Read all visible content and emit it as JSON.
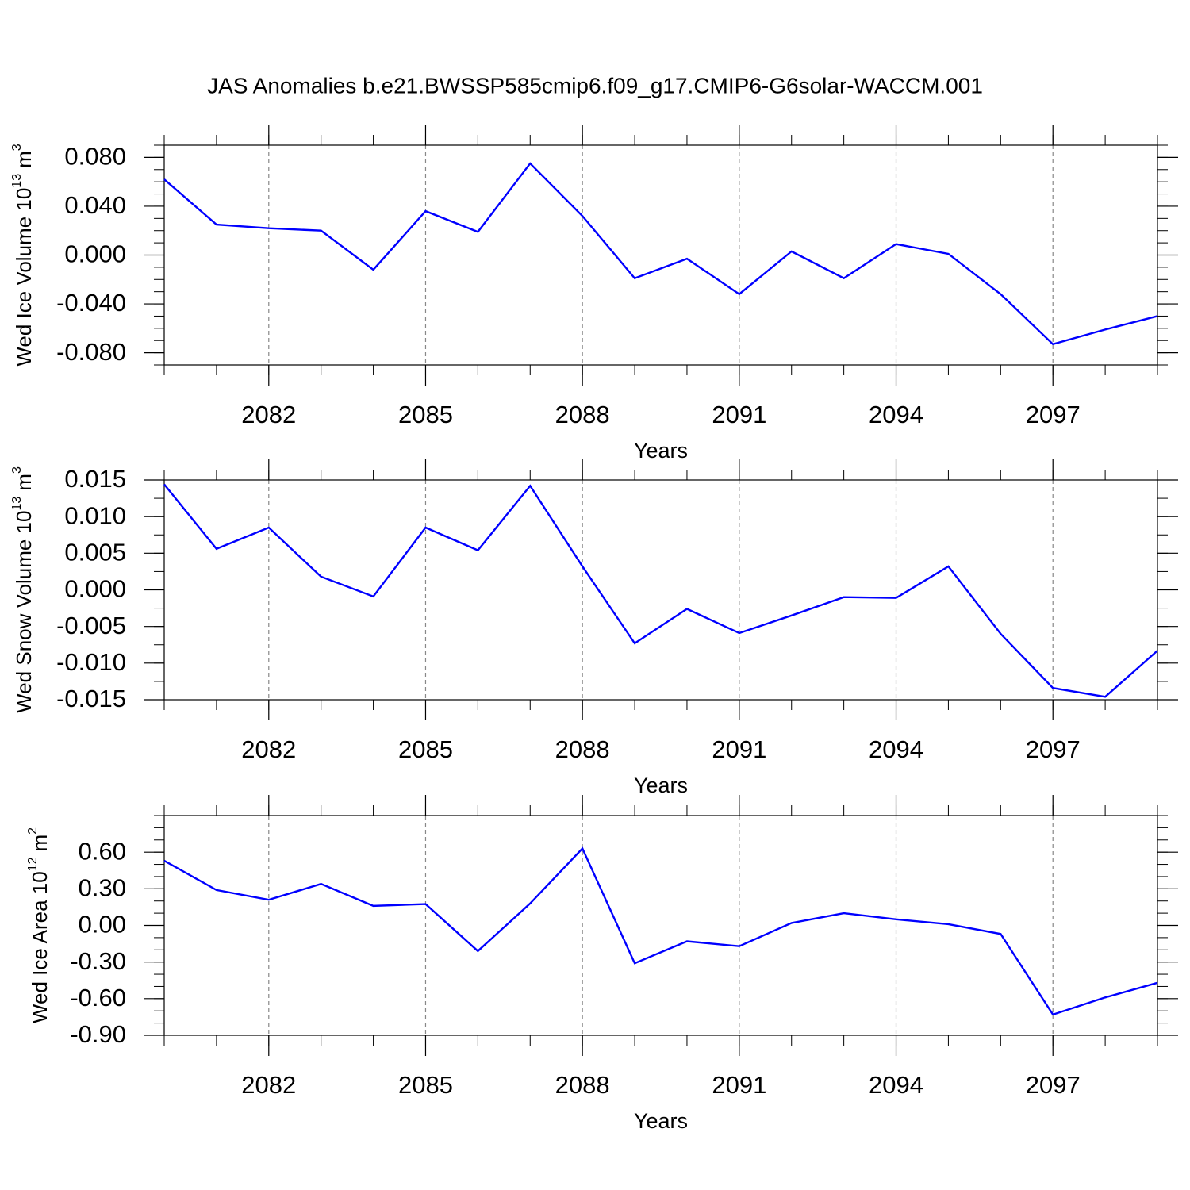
{
  "chart_data": [
    {
      "type": "line",
      "title": "JAS Anomalies b.e21.BWSSP585cmip6.f09_g17.CMIP6-G6solar-WACCM.001",
      "xlabel": "Years",
      "ylabel": {
        "text": "Wed Ice Volume 10",
        "exponent": "13",
        "unit": "m",
        "unit_exponent": "3"
      },
      "x": [
        2080,
        2081,
        2082,
        2083,
        2084,
        2085,
        2086,
        2087,
        2088,
        2089,
        2090,
        2091,
        2092,
        2093,
        2094,
        2095,
        2096,
        2097,
        2098,
        2099
      ],
      "series": [
        {
          "color": "#0000ff",
          "values": [
            0.062,
            0.025,
            0.022,
            0.02,
            -0.012,
            0.036,
            0.019,
            0.075,
            0.032,
            -0.019,
            -0.003,
            -0.032,
            0.003,
            -0.019,
            0.009,
            0.001,
            -0.032,
            -0.073,
            -0.061,
            -0.05
          ]
        }
      ],
      "xlim": [
        2080,
        2099
      ],
      "xticks": [
        2082,
        2085,
        2088,
        2091,
        2094,
        2097
      ],
      "xminorticks": [
        2080,
        2081,
        2082,
        2083,
        2084,
        2085,
        2086,
        2087,
        2088,
        2089,
        2090,
        2091,
        2092,
        2093,
        2094,
        2095,
        2096,
        2097,
        2098,
        2099
      ],
      "ylim": [
        -0.09,
        0.09
      ],
      "yticks": [
        {
          "value": 0.08,
          "label": "0.080"
        },
        {
          "value": 0.04,
          "label": "0.040"
        },
        {
          "value": 0,
          "label": "0.000"
        },
        {
          "value": -0.04,
          "label": "-0.040"
        },
        {
          "value": -0.08,
          "label": "-0.080"
        }
      ],
      "yminorticks": [
        -0.09,
        -0.08,
        -0.07,
        -0.06,
        -0.05,
        -0.04,
        -0.03,
        -0.02,
        -0.01,
        0,
        0.01,
        0.02,
        0.03,
        0.04,
        0.05,
        0.06,
        0.07,
        0.08,
        0.09
      ],
      "grid": "x"
    },
    {
      "type": "line",
      "xlabel": "Years",
      "ylabel": {
        "text": "Wed Snow Volume 10",
        "exponent": "13",
        "unit": "m",
        "unit_exponent": "3"
      },
      "x": [
        2080,
        2081,
        2082,
        2083,
        2084,
        2085,
        2086,
        2087,
        2088,
        2089,
        2090,
        2091,
        2092,
        2093,
        2094,
        2095,
        2096,
        2097,
        2098,
        2099
      ],
      "series": [
        {
          "color": "#0000ff",
          "values": [
            0.0144,
            0.0056,
            0.0085,
            0.0018,
            -0.0009,
            0.0085,
            0.0054,
            0.0142,
            0.0032,
            -0.0073,
            -0.0026,
            -0.0059,
            -0.0035,
            -0.001,
            -0.0011,
            0.0032,
            -0.006,
            -0.0134,
            -0.0146,
            -0.0083
          ]
        }
      ],
      "xlim": [
        2080,
        2099
      ],
      "xticks": [
        2082,
        2085,
        2088,
        2091,
        2094,
        2097
      ],
      "xminorticks": [
        2080,
        2081,
        2082,
        2083,
        2084,
        2085,
        2086,
        2087,
        2088,
        2089,
        2090,
        2091,
        2092,
        2093,
        2094,
        2095,
        2096,
        2097,
        2098,
        2099
      ],
      "ylim": [
        -0.015,
        0.015
      ],
      "yticks": [
        0.015,
        {
          "value": 0.01,
          "label": "0.010"
        },
        0.005,
        {
          "value": 0,
          "label": "0.000"
        },
        -0.005,
        {
          "value": -0.01,
          "label": "-0.010"
        },
        -0.015
      ],
      "yminorticks": [
        -0.015,
        -0.0125,
        -0.01,
        -0.0075,
        -0.005,
        -0.0025,
        0,
        0.0025,
        0.005,
        0.0075,
        0.01,
        0.0125,
        0.015
      ],
      "grid": "x"
    },
    {
      "type": "line",
      "xlabel": "Years",
      "ylabel": {
        "text": "Wed Ice Area 10",
        "exponent": "12",
        "unit": "m",
        "unit_exponent": "2"
      },
      "x": [
        2080,
        2081,
        2082,
        2083,
        2084,
        2085,
        2086,
        2087,
        2088,
        2089,
        2090,
        2091,
        2092,
        2093,
        2094,
        2095,
        2096,
        2097,
        2098,
        2099
      ],
      "series": [
        {
          "color": "#0000ff",
          "values": [
            0.53,
            0.29,
            0.21,
            0.34,
            0.16,
            0.175,
            -0.21,
            0.18,
            0.63,
            -0.31,
            -0.13,
            -0.17,
            0.02,
            0.1,
            0.05,
            0.01,
            -0.07,
            -0.73,
            -0.59,
            -0.47
          ]
        }
      ],
      "xlim": [
        2080,
        2099
      ],
      "xticks": [
        2082,
        2085,
        2088,
        2091,
        2094,
        2097
      ],
      "xminorticks": [
        2080,
        2081,
        2082,
        2083,
        2084,
        2085,
        2086,
        2087,
        2088,
        2089,
        2090,
        2091,
        2092,
        2093,
        2094,
        2095,
        2096,
        2097,
        2098,
        2099
      ],
      "ylim": [
        -0.9,
        0.9
      ],
      "yticks": [
        {
          "value": 0.6,
          "label": "0.60"
        },
        {
          "value": 0.3,
          "label": "0.30"
        },
        {
          "value": 0,
          "label": "0.00"
        },
        {
          "value": -0.3,
          "label": "-0.30"
        },
        {
          "value": -0.6,
          "label": "-0.60"
        },
        {
          "value": -0.9,
          "label": "-0.90"
        }
      ],
      "yminorticks": [
        -0.9,
        -0.8,
        -0.7,
        -0.6,
        -0.5,
        -0.4,
        -0.3,
        -0.2,
        -0.1,
        0,
        0.1,
        0.2,
        0.3,
        0.4,
        0.5,
        0.6,
        0.7,
        0.8,
        0.9
      ],
      "grid": "x"
    }
  ]
}
